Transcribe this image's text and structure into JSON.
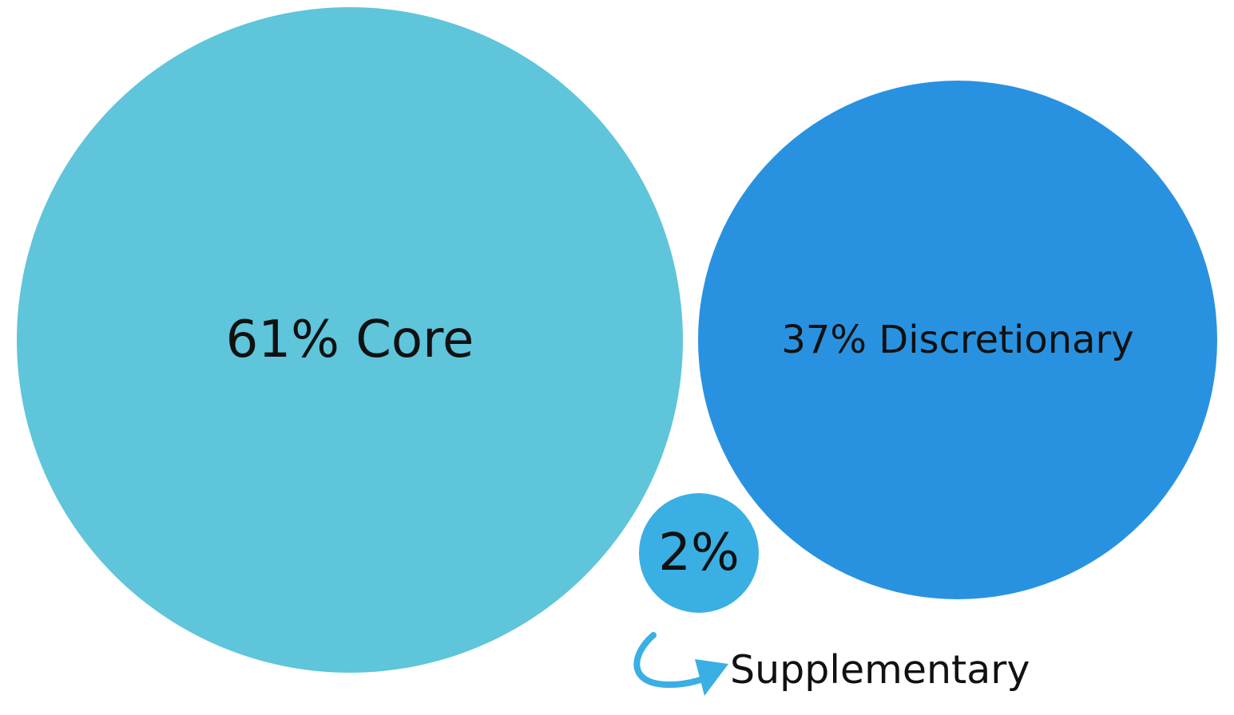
{
  "chart_data": {
    "type": "bubble",
    "items": [
      {
        "value": 61,
        "label": "61% Core",
        "color": "#5EC5DB"
      },
      {
        "value": 37,
        "label": "37% Discretionary",
        "color": "#2892E1"
      },
      {
        "value": 2,
        "label": "2%",
        "color": "#3AAFE4"
      }
    ],
    "callout": {
      "text": "Supplementary",
      "color": "#3AAFE4",
      "icon": "curved-arrow-icon"
    }
  }
}
